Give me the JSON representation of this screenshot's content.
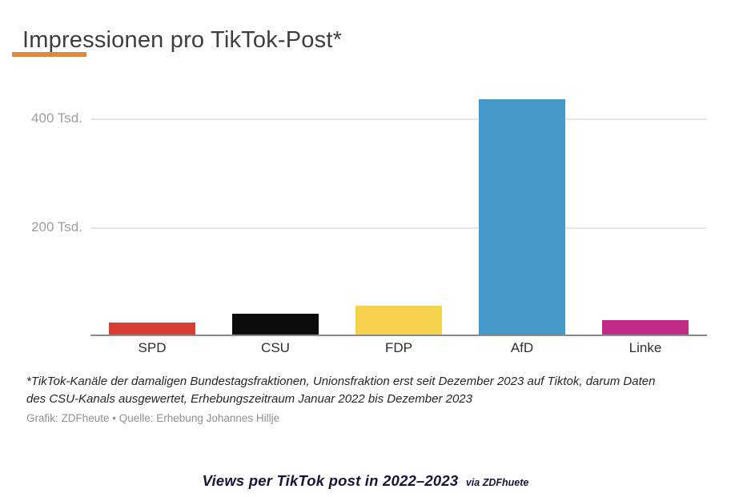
{
  "header": {
    "title": "Impressionen pro TikTok-Post*",
    "accent_color": "#e0893c"
  },
  "chart_data": {
    "type": "bar",
    "title": "Impressionen pro TikTok-Post*",
    "categories": [
      "SPD",
      "CSU",
      "FDP",
      "AfD",
      "Linke"
    ],
    "values": [
      22,
      38,
      53,
      432,
      27
    ],
    "unit": "Tsd. Impressionen",
    "bar_colors": [
      "#d93c32",
      "#0c0c0c",
      "#f5d44c",
      "#4698c8",
      "#c02c88"
    ],
    "yticks": [
      {
        "value": 200,
        "label": "200 Tsd."
      },
      {
        "value": 400,
        "label": "400 Tsd."
      }
    ],
    "ylim": [
      0,
      470
    ],
    "xlabel": "",
    "ylabel": "",
    "grid": "horizontal",
    "legend": "none",
    "gridline_color": "#e6e6e6",
    "axis_color": "#8a8a8a"
  },
  "footnote": {
    "lines": [
      "*TikTok-Kanäle der damaligen Bundestagsfraktionen, Unionsfraktion erst seit Dezember 2023 auf Tiktok, darum Daten",
      "des CSU-Kanals ausgewertet, Erhebungszeitraum Januar 2022 bis Dezember 2023"
    ]
  },
  "source": {
    "text": "Grafik: ZDFheute • Quelle: Erhebung Johannes Hillje"
  },
  "caption": {
    "main": "Views per TikTok post in 2022–2023",
    "suffix": "via ZDFhuete"
  }
}
